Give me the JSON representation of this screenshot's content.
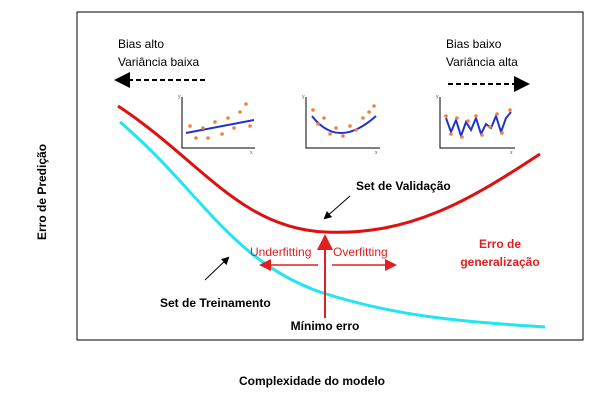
{
  "axes": {
    "y_label": "Erro de Predição",
    "x_label": "Complexidade do modelo"
  },
  "left_note": {
    "line1": "Bias alto",
    "line2": "Variância baixa"
  },
  "right_note": {
    "line1": "Bias baixo",
    "line2": "Variância alta"
  },
  "inset_axes": {
    "y": "y",
    "x": "x"
  },
  "labels": {
    "validation": "Set de Validação",
    "training": "Set de Treinamento",
    "underfitting": "Underfitting",
    "overfitting": "Overfitting",
    "minimum": "Mínimo erro",
    "generalization": [
      "Erro de",
      "generalização"
    ]
  }
}
